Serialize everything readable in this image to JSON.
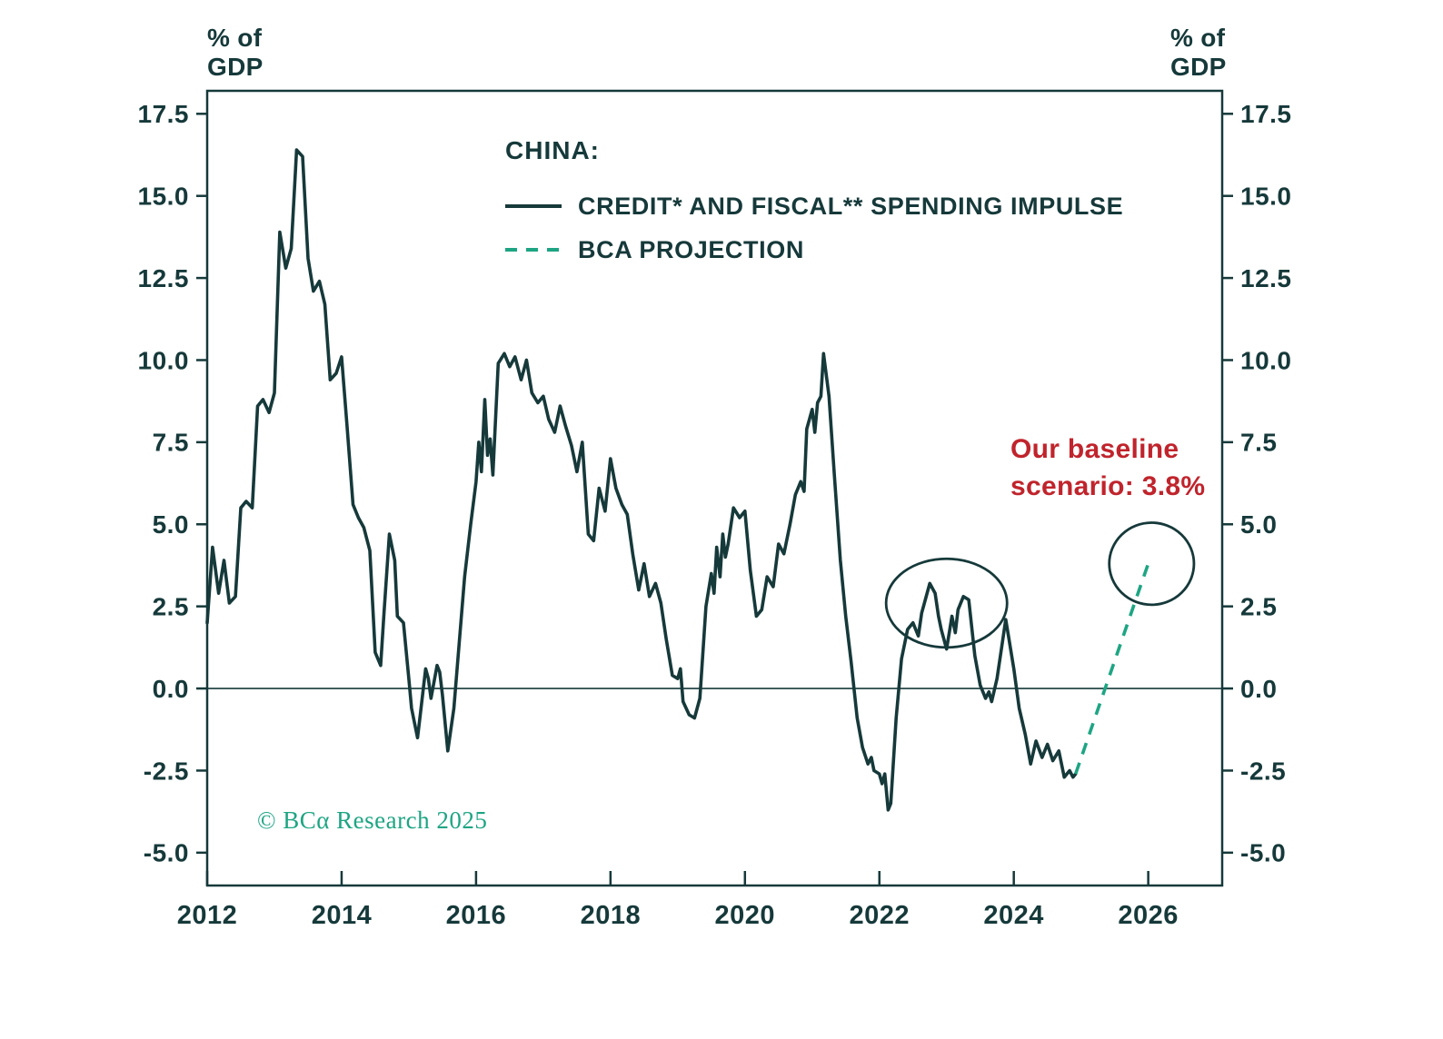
{
  "page": {
    "background": "#ffffff"
  },
  "colors": {
    "ink": "#16393a",
    "projection_green": "#1ea583",
    "baseline_red": "#c0242c",
    "copyright_green": "#1ea583"
  },
  "axis": {
    "y_unit_left": [
      "% of",
      "GDP"
    ],
    "y_unit_right": [
      "% of",
      "GDP"
    ]
  },
  "annotations": {
    "baseline_lines": [
      "Our baseline",
      "scenario: 3.8%"
    ],
    "copyright": "© BCα Research 2025"
  },
  "chart_data": {
    "type": "line",
    "title": "CHINA:",
    "xlabel": "",
    "ylabel": "% of GDP",
    "xlim": [
      2012,
      2027.1
    ],
    "ylim": [
      -6.0,
      18.2
    ],
    "grid": false,
    "x_tick_values": [
      2012,
      2014,
      2016,
      2018,
      2020,
      2022,
      2024,
      2026
    ],
    "x_tick_labels": [
      "2012",
      "2014",
      "2016",
      "2018",
      "2020",
      "2022",
      "2024",
      "2026"
    ],
    "y_tick_values": [
      -5.0,
      -2.5,
      0.0,
      2.5,
      5.0,
      7.5,
      10.0,
      12.5,
      15.0,
      17.5
    ],
    "y_tick_labels": [
      "-5.0",
      "-2.5",
      "0.0",
      "2.5",
      "5.0",
      "7.5",
      "10.0",
      "12.5",
      "15.0",
      "17.5"
    ],
    "zero_line": 0,
    "series": [
      {
        "name": "CREDIT* AND FISCAL** SPENDING IMPULSE",
        "style": "solid",
        "color": "#16393a",
        "points": [
          [
            2012.0,
            2.0
          ],
          [
            2012.08,
            4.3
          ],
          [
            2012.17,
            2.9
          ],
          [
            2012.25,
            3.9
          ],
          [
            2012.33,
            2.6
          ],
          [
            2012.42,
            2.8
          ],
          [
            2012.5,
            5.5
          ],
          [
            2012.58,
            5.7
          ],
          [
            2012.67,
            5.5
          ],
          [
            2012.75,
            8.6
          ],
          [
            2012.83,
            8.8
          ],
          [
            2012.92,
            8.4
          ],
          [
            2013.0,
            9.0
          ],
          [
            2013.08,
            13.9
          ],
          [
            2013.17,
            12.8
          ],
          [
            2013.25,
            13.4
          ],
          [
            2013.33,
            16.4
          ],
          [
            2013.42,
            16.2
          ],
          [
            2013.5,
            13.1
          ],
          [
            2013.58,
            12.1
          ],
          [
            2013.67,
            12.4
          ],
          [
            2013.75,
            11.7
          ],
          [
            2013.83,
            9.4
          ],
          [
            2013.92,
            9.6
          ],
          [
            2014.0,
            10.1
          ],
          [
            2014.08,
            8.0
          ],
          [
            2014.17,
            5.6
          ],
          [
            2014.25,
            5.2
          ],
          [
            2014.33,
            4.9
          ],
          [
            2014.42,
            4.2
          ],
          [
            2014.5,
            1.1
          ],
          [
            2014.58,
            0.7
          ],
          [
            2014.63,
            2.3
          ],
          [
            2014.71,
            4.7
          ],
          [
            2014.79,
            3.9
          ],
          [
            2014.83,
            2.2
          ],
          [
            2014.92,
            2.0
          ],
          [
            2015.0,
            0.3
          ],
          [
            2015.04,
            -0.6
          ],
          [
            2015.08,
            -1.0
          ],
          [
            2015.13,
            -1.5
          ],
          [
            2015.17,
            -0.8
          ],
          [
            2015.25,
            0.6
          ],
          [
            2015.29,
            0.3
          ],
          [
            2015.33,
            -0.3
          ],
          [
            2015.42,
            0.7
          ],
          [
            2015.46,
            0.5
          ],
          [
            2015.5,
            -0.2
          ],
          [
            2015.58,
            -1.9
          ],
          [
            2015.67,
            -0.6
          ],
          [
            2015.75,
            1.4
          ],
          [
            2015.83,
            3.4
          ],
          [
            2015.92,
            5.0
          ],
          [
            2016.0,
            6.3
          ],
          [
            2016.04,
            7.5
          ],
          [
            2016.08,
            6.6
          ],
          [
            2016.13,
            8.8
          ],
          [
            2016.17,
            7.1
          ],
          [
            2016.21,
            7.6
          ],
          [
            2016.25,
            6.5
          ],
          [
            2016.33,
            9.9
          ],
          [
            2016.42,
            10.2
          ],
          [
            2016.5,
            9.8
          ],
          [
            2016.58,
            10.1
          ],
          [
            2016.67,
            9.4
          ],
          [
            2016.75,
            10.0
          ],
          [
            2016.83,
            9.0
          ],
          [
            2016.92,
            8.7
          ],
          [
            2017.0,
            8.9
          ],
          [
            2017.08,
            8.2
          ],
          [
            2017.17,
            7.8
          ],
          [
            2017.25,
            8.6
          ],
          [
            2017.33,
            8.0
          ],
          [
            2017.42,
            7.4
          ],
          [
            2017.5,
            6.6
          ],
          [
            2017.58,
            7.5
          ],
          [
            2017.67,
            4.7
          ],
          [
            2017.75,
            4.5
          ],
          [
            2017.83,
            6.1
          ],
          [
            2017.92,
            5.4
          ],
          [
            2018.0,
            7.0
          ],
          [
            2018.08,
            6.1
          ],
          [
            2018.17,
            5.6
          ],
          [
            2018.25,
            5.3
          ],
          [
            2018.33,
            4.1
          ],
          [
            2018.42,
            3.0
          ],
          [
            2018.5,
            3.8
          ],
          [
            2018.58,
            2.8
          ],
          [
            2018.67,
            3.2
          ],
          [
            2018.75,
            2.6
          ],
          [
            2018.83,
            1.5
          ],
          [
            2018.92,
            0.4
          ],
          [
            2019.0,
            0.3
          ],
          [
            2019.04,
            0.6
          ],
          [
            2019.08,
            -0.4
          ],
          [
            2019.17,
            -0.8
          ],
          [
            2019.25,
            -0.9
          ],
          [
            2019.33,
            -0.3
          ],
          [
            2019.42,
            2.5
          ],
          [
            2019.5,
            3.5
          ],
          [
            2019.54,
            2.9
          ],
          [
            2019.58,
            4.3
          ],
          [
            2019.63,
            3.4
          ],
          [
            2019.67,
            4.7
          ],
          [
            2019.71,
            4.0
          ],
          [
            2019.75,
            4.4
          ],
          [
            2019.83,
            5.5
          ],
          [
            2019.92,
            5.2
          ],
          [
            2020.0,
            5.4
          ],
          [
            2020.08,
            3.6
          ],
          [
            2020.17,
            2.2
          ],
          [
            2020.25,
            2.4
          ],
          [
            2020.33,
            3.4
          ],
          [
            2020.42,
            3.1
          ],
          [
            2020.5,
            4.4
          ],
          [
            2020.58,
            4.1
          ],
          [
            2020.67,
            5.0
          ],
          [
            2020.75,
            5.9
          ],
          [
            2020.83,
            6.3
          ],
          [
            2020.88,
            6.0
          ],
          [
            2020.92,
            7.9
          ],
          [
            2021.0,
            8.5
          ],
          [
            2021.04,
            7.8
          ],
          [
            2021.08,
            8.7
          ],
          [
            2021.13,
            8.9
          ],
          [
            2021.17,
            10.2
          ],
          [
            2021.25,
            8.9
          ],
          [
            2021.33,
            6.5
          ],
          [
            2021.42,
            3.9
          ],
          [
            2021.5,
            2.2
          ],
          [
            2021.58,
            0.8
          ],
          [
            2021.67,
            -0.9
          ],
          [
            2021.75,
            -1.8
          ],
          [
            2021.83,
            -2.3
          ],
          [
            2021.88,
            -2.1
          ],
          [
            2021.92,
            -2.5
          ],
          [
            2022.0,
            -2.6
          ],
          [
            2022.04,
            -2.9
          ],
          [
            2022.08,
            -2.6
          ],
          [
            2022.13,
            -3.7
          ],
          [
            2022.17,
            -3.5
          ],
          [
            2022.25,
            -0.9
          ],
          [
            2022.33,
            0.9
          ],
          [
            2022.42,
            1.8
          ],
          [
            2022.5,
            2.0
          ],
          [
            2022.58,
            1.6
          ],
          [
            2022.63,
            2.3
          ],
          [
            2022.67,
            2.6
          ],
          [
            2022.75,
            3.2
          ],
          [
            2022.83,
            2.9
          ],
          [
            2022.88,
            2.2
          ],
          [
            2022.92,
            1.8
          ],
          [
            2023.0,
            1.2
          ],
          [
            2023.08,
            2.2
          ],
          [
            2023.13,
            1.7
          ],
          [
            2023.17,
            2.4
          ],
          [
            2023.25,
            2.8
          ],
          [
            2023.33,
            2.7
          ],
          [
            2023.42,
            1.0
          ],
          [
            2023.5,
            0.1
          ],
          [
            2023.58,
            -0.3
          ],
          [
            2023.63,
            -0.1
          ],
          [
            2023.67,
            -0.4
          ],
          [
            2023.75,
            0.3
          ],
          [
            2023.83,
            1.4
          ],
          [
            2023.88,
            2.1
          ],
          [
            2023.92,
            1.6
          ],
          [
            2024.0,
            0.6
          ],
          [
            2024.08,
            -0.6
          ],
          [
            2024.17,
            -1.4
          ],
          [
            2024.25,
            -2.3
          ],
          [
            2024.33,
            -1.6
          ],
          [
            2024.42,
            -2.1
          ],
          [
            2024.5,
            -1.7
          ],
          [
            2024.58,
            -2.2
          ],
          [
            2024.67,
            -1.9
          ],
          [
            2024.75,
            -2.7
          ],
          [
            2024.83,
            -2.5
          ],
          [
            2024.88,
            -2.7
          ],
          [
            2024.92,
            -2.6
          ]
        ]
      }
    ],
    "projection": {
      "name": "BCA PROJECTION",
      "style": "dashed",
      "color": "#1ea583",
      "points": [
        [
          2024.92,
          -2.6
        ],
        [
          2026.0,
          3.8
        ]
      ],
      "end_value_pct": 3.8
    },
    "ellipses": [
      {
        "cx": 2023.0,
        "cy": 2.6,
        "rx": 0.9,
        "ry": 1.35
      },
      {
        "cx": 2026.05,
        "cy": 3.8,
        "rx": 0.63,
        "ry": 1.25
      }
    ],
    "legend_position": "upper-center-left"
  }
}
